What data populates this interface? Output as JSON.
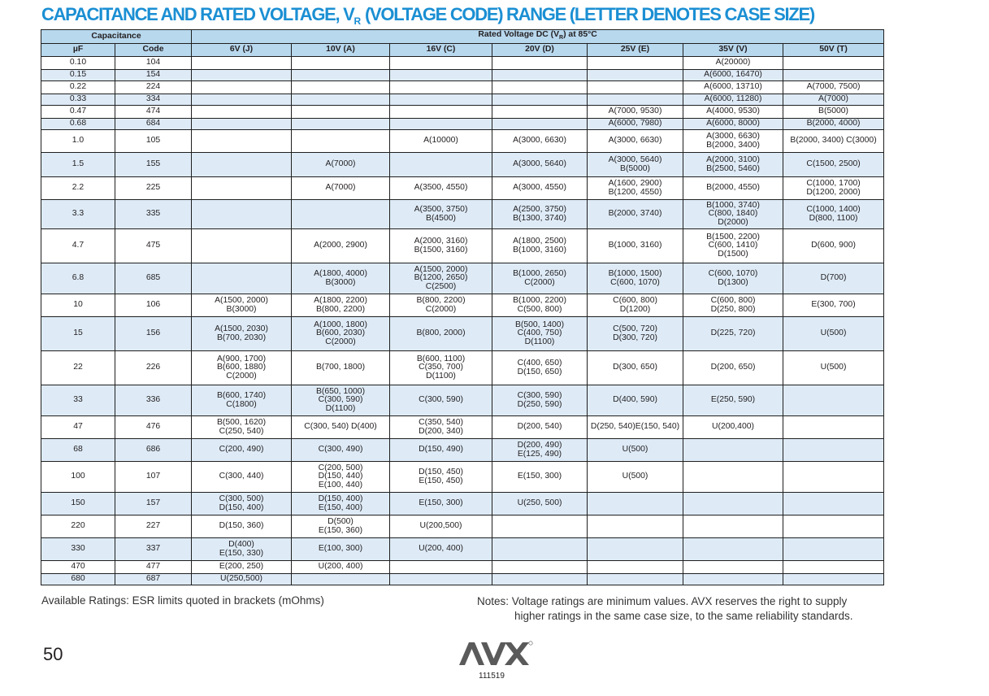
{
  "title": {
    "before_sub": "CAPACITANCE AND RATED VOLTAGE, V",
    "sub": "R",
    "after_sub": " (VOLTAGE CODE) RANGE (LETTER DENOTES CASE SIZE)"
  },
  "table": {
    "group_capacitance": "Capacitance",
    "group_rated_prefix": "Rated Voltage DC (V",
    "group_rated_sub": "R",
    "group_rated_suffix": ") at 85°C",
    "columns": [
      "µF",
      "Code",
      "6V (J)",
      "10V (A)",
      "16V (C)",
      "20V (D)",
      "25V (E)",
      "35V (V)",
      "50V (T)"
    ],
    "rows": [
      [
        "0.10",
        "104",
        "",
        "",
        "",
        "",
        "",
        "A(20000)",
        ""
      ],
      [
        "0.15",
        "154",
        "",
        "",
        "",
        "",
        "",
        "A(6000, 16470)",
        ""
      ],
      [
        "0.22",
        "224",
        "",
        "",
        "",
        "",
        "",
        "A(6000, 13710)",
        "A(7000, 7500)"
      ],
      [
        "0.33",
        "334",
        "",
        "",
        "",
        "",
        "",
        "A(6000, 11280)",
        "A(7000)"
      ],
      [
        "0.47",
        "474",
        "",
        "",
        "",
        "",
        "A(7000, 9530)",
        "A(4000, 9530)",
        "B(5000)"
      ],
      [
        "0.68",
        "684",
        "",
        "",
        "",
        "",
        "A(6000, 7980)",
        "A(6000, 8000)",
        "B(2000, 4000)"
      ],
      [
        "1.0",
        "105",
        "",
        "",
        "A(10000)",
        "A(3000, 6630)",
        "A(3000, 6630)",
        "A(3000, 6630)\nB(2000, 3400)",
        "B(2000, 3400) C(3000)"
      ],
      [
        "1.5",
        "155",
        "",
        "A(7000)",
        "",
        "A(3000, 5640)",
        "A(3000, 5640)\nB(5000)",
        "A(2000, 3100)\nB(2500, 5460)",
        "C(1500, 2500)"
      ],
      [
        "2.2",
        "225",
        "",
        "A(7000)",
        "A(3500, 4550)",
        "A(3000, 4550)",
        "A(1600, 2900)\nB(1200, 4550)",
        "B(2000, 4550)",
        "C(1000, 1700)\nD(1200, 2000)"
      ],
      [
        "3.3",
        "335",
        "",
        "",
        "A(3500, 3750)\nB(4500)",
        "A(2500, 3750)\nB(1300, 3740)",
        "B(2000, 3740)",
        "B(1000, 3740)\nC(800, 1840)\nD(2000)",
        "C(1000, 1400)\nD(800, 1100)"
      ],
      [
        "4.7",
        "475",
        "",
        "A(2000, 2900)",
        "A(2000, 3160)\nB(1500, 3160)",
        "A(1800, 2500)\nB(1000, 3160)",
        "B(1000, 3160)",
        "B(1500, 2200)\nC(600, 1410)\nD(1500)",
        "D(600, 900)"
      ],
      [
        "6.8",
        "685",
        "",
        "A(1800, 4000)\nB(3000)",
        "A(1500, 2000)\nB(1200, 2650)\nC(2500)",
        "B(1000, 2650)\nC(2000)",
        "B(1000, 1500)\nC(600, 1070)",
        "C(600, 1070)\nD(1300)",
        "D(700)"
      ],
      [
        "10",
        "106",
        "A(1500, 2000)\nB(3000)",
        "A(1800, 2200)\nB(800, 2200)",
        "B(800, 2200)\nC(2000)",
        "B(1000, 2200)\nC(500, 800)",
        "C(600, 800)\nD(1200)",
        "C(600, 800)\nD(250, 800)",
        "E(300, 700)"
      ],
      [
        "15",
        "156",
        "A(1500, 2030)\nB(700, 2030)",
        "A(1000, 1800)\nB(600, 2030)\nC(2000)",
        "B(800, 2000)",
        "B(500, 1400)\nC(400, 750)\nD(1100)",
        "C(500, 720)\nD(300, 720)",
        "D(225, 720)",
        "U(500)"
      ],
      [
        "22",
        "226",
        "A(900, 1700)\nB(600, 1880)\nC(2000)",
        "B(700, 1800)",
        "B(600, 1100)\nC(350, 700)\nD(1100)",
        "C(400, 650)\nD(150, 650)",
        "D(300, 650)",
        "D(200, 650)",
        "U(500)"
      ],
      [
        "33",
        "336",
        "B(600, 1740)\nC(1800)",
        "B(650, 1000)\nC(300, 590)\nD(1100)",
        "C(300, 590)",
        "C(300, 590)\nD(250, 590)",
        "D(400, 590)",
        "E(250, 590)",
        ""
      ],
      [
        "47",
        "476",
        "B(500, 1620)\nC(250, 540)",
        "C(300, 540) D(400)",
        "C(350, 540)\nD(200, 340)",
        "D(200, 540)",
        "D(250, 540)E(150, 540)",
        "U(200,400)",
        ""
      ],
      [
        "68",
        "686",
        "C(200, 490)",
        "C(300, 490)",
        "D(150, 490)",
        "D(200, 490)\nE(125, 490)",
        "U(500)",
        "",
        ""
      ],
      [
        "100",
        "107",
        "C(300, 440)",
        "C(200, 500)\nD(150, 440)\nE(100, 440)",
        "D(150, 450)\nE(150, 450)",
        "E(150, 300)",
        "U(500)",
        "",
        ""
      ],
      [
        "150",
        "157",
        "C(300, 500)\nD(150, 400)",
        "D(150, 400)\nE(150, 400)",
        "E(150, 300)",
        "U(250, 500)",
        "",
        "",
        ""
      ],
      [
        "220",
        "227",
        "D(150, 360)",
        "D(500)\nE(150, 360)",
        "U(200,500)",
        "",
        "",
        "",
        ""
      ],
      [
        "330",
        "337",
        "D(400)\nE(150, 330)",
        "E(100, 300)",
        "U(200, 400)",
        "",
        "",
        "",
        ""
      ],
      [
        "470",
        "477",
        "E(200, 250)",
        "U(200, 400)",
        "",
        "",
        "",
        "",
        ""
      ],
      [
        "680",
        "687",
        "U(250,500)",
        "",
        "",
        "",
        "",
        "",
        ""
      ]
    ]
  },
  "footer": {
    "available_ratings": "Available Ratings: ESR limits quoted in brackets (mOhms)",
    "notes_line1": "Notes:  Voltage ratings are minimum values. AVX reserves the right to supply",
    "notes_line2": "higher ratings in the same case size, to the same reliability standards.",
    "page_number": "50",
    "logo_text": "AVX",
    "doc_code": "111519"
  },
  "colors": {
    "title": "#1b8fd3",
    "header_fill": "#b8d8ee",
    "row_stripe": "#deebf7",
    "logo": "#5a5a5a"
  }
}
